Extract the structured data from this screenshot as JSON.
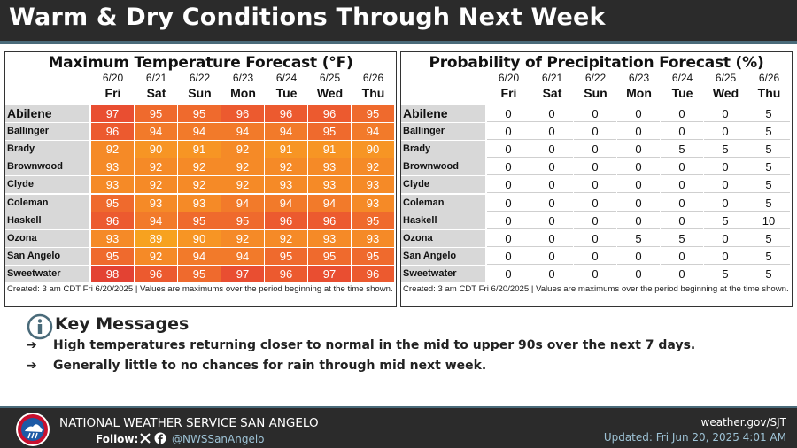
{
  "title": "Warm & Dry Conditions Through Next Week",
  "days": [
    {
      "date": "6/20",
      "dow": "Fri"
    },
    {
      "date": "6/21",
      "dow": "Sat"
    },
    {
      "date": "6/22",
      "dow": "Sun"
    },
    {
      "date": "6/23",
      "dow": "Mon"
    },
    {
      "date": "6/24",
      "dow": "Tue"
    },
    {
      "date": "6/25",
      "dow": "Wed"
    },
    {
      "date": "6/26",
      "dow": "Thu"
    }
  ],
  "cities": [
    "Abilene",
    "Ballinger",
    "Brady",
    "Brownwood",
    "Clyde",
    "Coleman",
    "Haskell",
    "Ozona",
    "San Angelo",
    "Sweetwater"
  ],
  "temperature": {
    "title": "Maximum Temperature Forecast (°F)",
    "values": [
      [
        97,
        95,
        95,
        96,
        96,
        96,
        95
      ],
      [
        96,
        94,
        94,
        94,
        94,
        95,
        94
      ],
      [
        92,
        90,
        91,
        92,
        91,
        91,
        90
      ],
      [
        93,
        92,
        92,
        92,
        92,
        93,
        92
      ],
      [
        93,
        92,
        92,
        92,
        93,
        93,
        93
      ],
      [
        95,
        93,
        93,
        94,
        94,
        94,
        93
      ],
      [
        96,
        94,
        95,
        95,
        96,
        96,
        95
      ],
      [
        93,
        89,
        90,
        92,
        92,
        93,
        93
      ],
      [
        95,
        92,
        94,
        94,
        95,
        95,
        95
      ],
      [
        98,
        96,
        95,
        97,
        96,
        97,
        96
      ]
    ],
    "footnote": "Created: 3 am CDT Fri 6/20/2025  |  Values are maximums over the period beginning at the time shown."
  },
  "precipitation": {
    "title": "Probability of Precipitation Forecast (%)",
    "values": [
      [
        0,
        0,
        0,
        0,
        0,
        0,
        5
      ],
      [
        0,
        0,
        0,
        0,
        0,
        0,
        5
      ],
      [
        0,
        0,
        0,
        0,
        5,
        5,
        5
      ],
      [
        0,
        0,
        0,
        0,
        0,
        0,
        5
      ],
      [
        0,
        0,
        0,
        0,
        0,
        0,
        5
      ],
      [
        0,
        0,
        0,
        0,
        0,
        0,
        5
      ],
      [
        0,
        0,
        0,
        0,
        0,
        5,
        10
      ],
      [
        0,
        0,
        0,
        5,
        5,
        0,
        5
      ],
      [
        0,
        0,
        0,
        0,
        0,
        0,
        5
      ],
      [
        0,
        0,
        0,
        0,
        0,
        5,
        5
      ]
    ],
    "footnote": "Created: 3 am CDT Fri 6/20/2025  |  Values are maximums over the period beginning at the time shown."
  },
  "temp_colors": {
    "89": "#f7a21f",
    "90": "#f79524",
    "91": "#f79524",
    "92": "#f58a27",
    "93": "#f58a27",
    "94": "#f27a2a",
    "95": "#ef6a2d",
    "96": "#ec5a2f",
    "97": "#e94e31",
    "98": "#e34233"
  },
  "key_messages": {
    "heading": "Key Messages",
    "bullets": [
      "High temperatures returning closer to normal in the mid to upper 90s over the next 7 days.",
      "Generally little to no chances for rain through mid next week."
    ]
  },
  "footer": {
    "org": "NATIONAL WEATHER SERVICE SAN ANGELO",
    "follow": "Follow:",
    "handle": "@NWSSanAngelo",
    "site": "weather.gov/SJT",
    "updated": "Updated: Fri Jun 20, 2025 4:01 AM"
  },
  "icons": {
    "info": "info-icon",
    "arrow": "arrow-right-icon",
    "x": "x-logo-icon",
    "facebook": "facebook-icon",
    "nws": "nws-logo"
  }
}
